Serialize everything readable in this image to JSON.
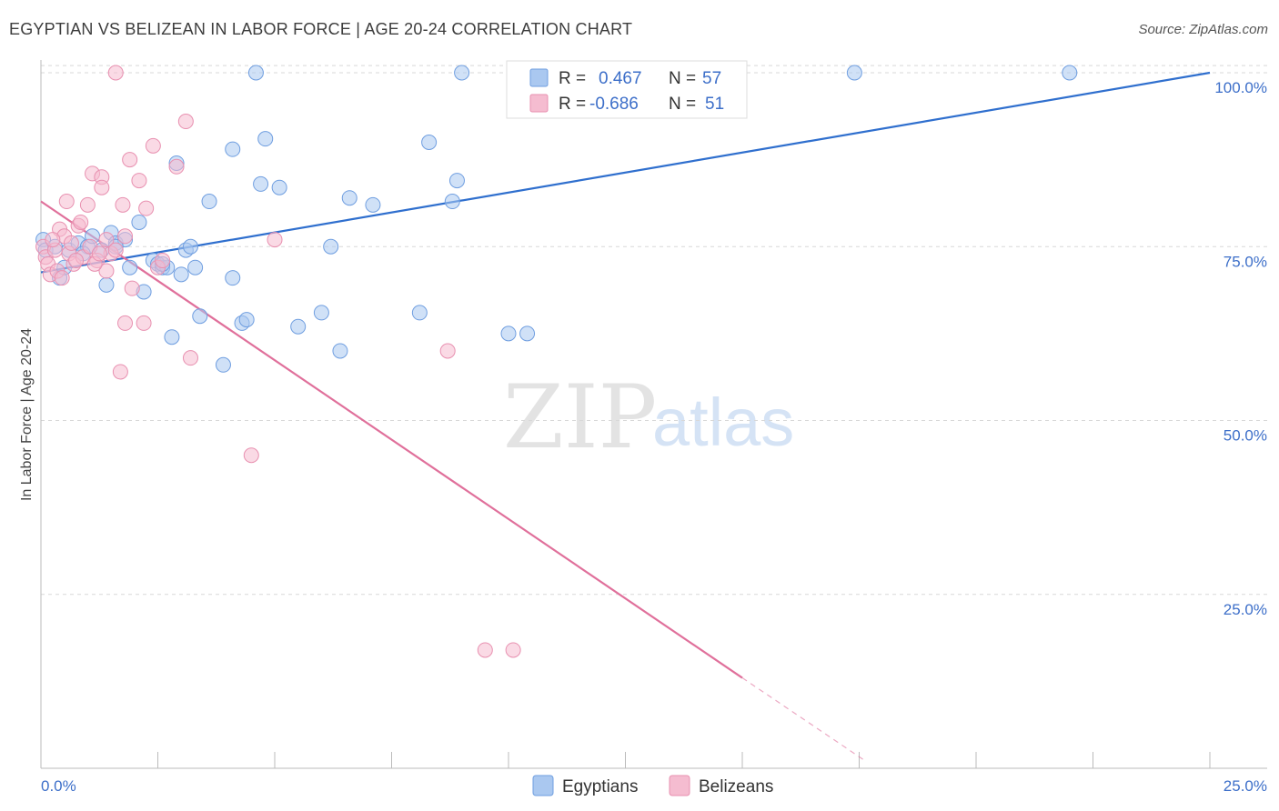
{
  "title": "EGYPTIAN VS BELIZEAN IN LABOR FORCE | AGE 20-24 CORRELATION CHART",
  "source": "Source: ZipAtlas.com",
  "watermark": {
    "part1": "ZIP",
    "part2": "atlas"
  },
  "colors": {
    "egyptians_fill": "#aac8f0",
    "egyptians_stroke": "#6f9ee0",
    "egyptians_line": "#2f6fce",
    "belizeans_fill": "#f5bcd0",
    "belizeans_stroke": "#e890b0",
    "belizeans_line": "#e0709b",
    "axis_text": "#3d6fc9",
    "grid": "#d8d8d8"
  },
  "legend": {
    "r_label": "R =",
    "n_label": "N =",
    "rows": [
      {
        "series": "Egyptians",
        "r": "0.467",
        "n": "57"
      },
      {
        "series": "Belizeans",
        "r": "-0.686",
        "n": "51"
      }
    ]
  },
  "chart_data": {
    "type": "scatter",
    "title": "EGYPTIAN VS BELIZEAN IN LABOR FORCE | AGE 20-24 CORRELATION CHART",
    "xlabel": "",
    "ylabel": "In Labor Force | Age 20-24",
    "xlim": [
      0,
      25
    ],
    "ylim": [
      0,
      102
    ],
    "x_tick_labels": [
      "0.0%",
      "25.0%"
    ],
    "y_ticks": [
      25,
      50,
      75,
      100
    ],
    "y_tick_labels": [
      "25.0%",
      "50.0%",
      "75.0%",
      "100.0%"
    ],
    "grid": "horizontal dashed",
    "legend_position": "top-center",
    "series": [
      {
        "name": "Egyptians",
        "trend": {
          "x": [
            0,
            25
          ],
          "y": [
            71.3,
            100.0
          ]
        },
        "points": [
          [
            0.05,
            76.0
          ],
          [
            0.1,
            74.5
          ],
          [
            0.3,
            75.0
          ],
          [
            0.4,
            70.5
          ],
          [
            0.5,
            72.0
          ],
          [
            0.6,
            74.5
          ],
          [
            0.8,
            75.5
          ],
          [
            1.0,
            75.0
          ],
          [
            1.1,
            76.5
          ],
          [
            1.3,
            74.5
          ],
          [
            1.4,
            69.5
          ],
          [
            1.5,
            77.0
          ],
          [
            1.6,
            75.5
          ],
          [
            1.8,
            76.0
          ],
          [
            1.9,
            72.0
          ],
          [
            2.1,
            78.5
          ],
          [
            2.2,
            68.5
          ],
          [
            2.4,
            73.0
          ],
          [
            2.5,
            72.5
          ],
          [
            2.6,
            72.0
          ],
          [
            2.7,
            72.0
          ],
          [
            2.8,
            62.0
          ],
          [
            2.9,
            87.0
          ],
          [
            3.0,
            71.0
          ],
          [
            3.1,
            74.5
          ],
          [
            3.2,
            75.0
          ],
          [
            3.4,
            65.0
          ],
          [
            3.6,
            81.5
          ],
          [
            3.9,
            58.0
          ],
          [
            4.1,
            89.0
          ],
          [
            4.1,
            70.5
          ],
          [
            4.3,
            64.0
          ],
          [
            4.4,
            64.5
          ],
          [
            4.6,
            100.0
          ],
          [
            4.7,
            84.0
          ],
          [
            4.8,
            90.5
          ],
          [
            5.1,
            83.5
          ],
          [
            5.5,
            63.5
          ],
          [
            6.0,
            65.5
          ],
          [
            6.2,
            75.0
          ],
          [
            6.4,
            60.0
          ],
          [
            6.6,
            82.0
          ],
          [
            7.1,
            81.0
          ],
          [
            8.1,
            65.5
          ],
          [
            8.3,
            90.0
          ],
          [
            8.8,
            81.5
          ],
          [
            8.9,
            84.5
          ],
          [
            9.0,
            100.0
          ],
          [
            10.0,
            62.5
          ],
          [
            10.4,
            62.5
          ],
          [
            13.4,
            100.0
          ],
          [
            17.4,
            100.0
          ],
          [
            22.0,
            100.0
          ],
          [
            1.6,
            75.0
          ],
          [
            0.9,
            74.0
          ],
          [
            2.6,
            72.5
          ],
          [
            3.3,
            72.0
          ]
        ]
      },
      {
        "name": "Belizeans",
        "trend": {
          "x": [
            0,
            15
          ],
          "y": [
            81.5,
            13.0
          ]
        },
        "trend_dashed": {
          "x": [
            15,
            17.6
          ],
          "y": [
            13.0,
            1.2
          ]
        },
        "points": [
          [
            0.05,
            75.0
          ],
          [
            0.1,
            73.5
          ],
          [
            0.15,
            72.5
          ],
          [
            0.2,
            71.0
          ],
          [
            0.3,
            74.5
          ],
          [
            0.4,
            77.5
          ],
          [
            0.5,
            76.5
          ],
          [
            0.55,
            81.5
          ],
          [
            0.6,
            74.0
          ],
          [
            0.7,
            72.5
          ],
          [
            0.8,
            78.0
          ],
          [
            0.9,
            73.5
          ],
          [
            1.0,
            81.0
          ],
          [
            1.05,
            75.0
          ],
          [
            1.1,
            85.5
          ],
          [
            1.2,
            73.0
          ],
          [
            1.3,
            85.0
          ],
          [
            1.3,
            83.5
          ],
          [
            1.4,
            71.5
          ],
          [
            1.4,
            76.0
          ],
          [
            1.5,
            74.0
          ],
          [
            1.6,
            100.0
          ],
          [
            1.6,
            74.5
          ],
          [
            1.7,
            57.0
          ],
          [
            1.75,
            81.0
          ],
          [
            1.8,
            76.5
          ],
          [
            1.8,
            64.0
          ],
          [
            1.9,
            87.5
          ],
          [
            1.95,
            69.0
          ],
          [
            2.1,
            84.5
          ],
          [
            2.2,
            64.0
          ],
          [
            2.25,
            80.5
          ],
          [
            2.4,
            89.5
          ],
          [
            2.5,
            72.0
          ],
          [
            3.1,
            93.0
          ],
          [
            3.2,
            59.0
          ],
          [
            2.9,
            86.5
          ],
          [
            4.5,
            45.0
          ],
          [
            5.0,
            76.0
          ],
          [
            8.7,
            60.0
          ],
          [
            9.5,
            17.0
          ],
          [
            10.1,
            17.0
          ],
          [
            0.35,
            71.5
          ],
          [
            0.45,
            70.5
          ],
          [
            0.65,
            75.5
          ],
          [
            0.75,
            73.0
          ],
          [
            0.85,
            78.5
          ],
          [
            1.15,
            72.5
          ],
          [
            1.25,
            74.0
          ],
          [
            0.25,
            76.0
          ],
          [
            2.6,
            73.0
          ]
        ]
      }
    ]
  }
}
